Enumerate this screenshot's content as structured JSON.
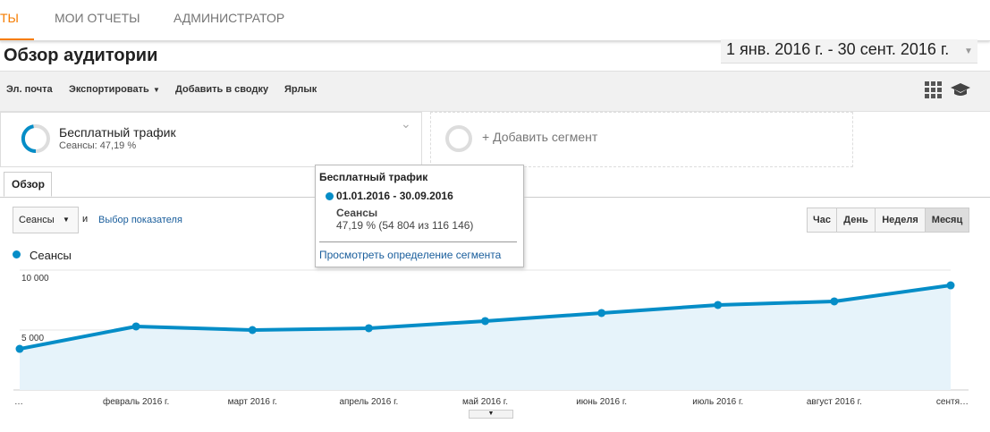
{
  "tabs": [
    "ТЫ",
    "МОИ ОТЧЕТЫ",
    "АДМИНИСТРАТОР"
  ],
  "page_title": "Обзор аудитории",
  "date_range": "1 янв. 2016 г. - 30 сент. 2016 г.",
  "toolbar": [
    "Эл. почта",
    "Экспортировать",
    "Добавить в сводку",
    "Ярлык"
  ],
  "segment": {
    "name": "Бесплатный трафик",
    "detail": "Сеансы: 47,19 %"
  },
  "add_segment": "+ Добавить сегмент",
  "report_tab": "Обзор",
  "metric_select": "Сеансы",
  "connector": "и",
  "metric_link": "Выбор показателя",
  "period_buttons": [
    "Час",
    "День",
    "Неделя",
    "Месяц"
  ],
  "tooltip": {
    "title": "Бесплатный трафик",
    "date": "01.01.2016 - 30.09.2016",
    "metric": "Сеансы",
    "value": "47,19 % (54 804 из 116 146)",
    "link": "Просмотреть определение сегмента"
  },
  "chart_data": {
    "type": "line",
    "categories": [
      "…",
      "февраль 2016 г.",
      "март 2016 г.",
      "апрель 2016 г.",
      "май 2016 г.",
      "июнь 2016 г.",
      "июль 2016 г.",
      "август 2016 г.",
      "сентя…"
    ],
    "series": [
      {
        "name": "Сеансы",
        "color": "#058dc7",
        "values": [
          3430,
          5300,
          5000,
          5150,
          5750,
          6420,
          7090,
          7390,
          8730
        ]
      }
    ],
    "ylim": [
      0,
      10000
    ],
    "yticks": [
      {
        "value": 5000,
        "label": "5 000"
      },
      {
        "value": 10000,
        "label": "10 000"
      }
    ],
    "grid": true
  }
}
